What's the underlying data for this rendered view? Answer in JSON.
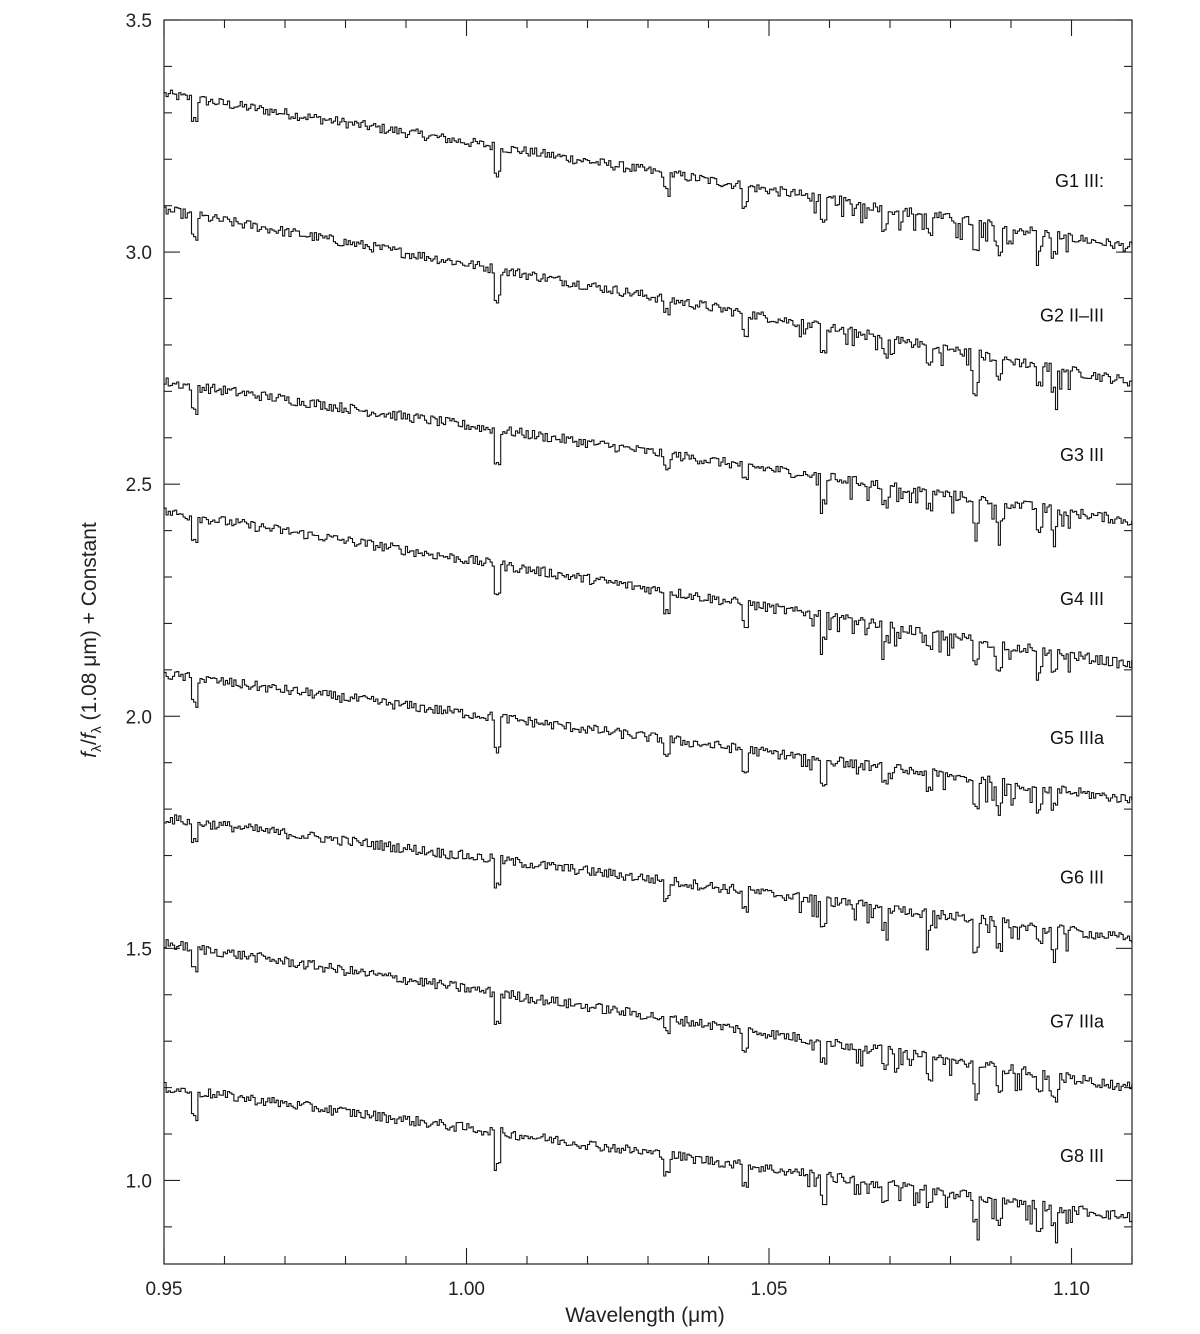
{
  "chart_data": {
    "type": "line",
    "title": "",
    "xlabel": "Wavelength (μm)",
    "ylabel_parts": {
      "f1": "f",
      "sub1": "λ",
      "slash": "/",
      "f2": "f",
      "sub2": "λ",
      "rest": " (1.08 μm) + Constant"
    },
    "xlim": [
      0.95,
      1.11
    ],
    "ylim": [
      0.82,
      3.5
    ],
    "x_ticks": [
      {
        "value": 0.95,
        "label": "0.95"
      },
      {
        "value": 1.0,
        "label": "1.00"
      },
      {
        "value": 1.05,
        "label": "1.05"
      },
      {
        "value": 1.1,
        "label": "1.10"
      }
    ],
    "x_minor_step": 0.01,
    "y_ticks": [
      {
        "value": 1.0,
        "label": "1.0"
      },
      {
        "value": 1.5,
        "label": "1.5"
      },
      {
        "value": 2.0,
        "label": "2.0"
      },
      {
        "value": 2.5,
        "label": "2.5"
      },
      {
        "value": 3.0,
        "label": "3.0"
      },
      {
        "value": 3.5,
        "label": "3.5"
      }
    ],
    "y_minor_step": 0.1,
    "grid": false,
    "lines": [
      {
        "name": "G1 III:",
        "start": 3.34,
        "end": 3.01,
        "label_y": 3.14
      },
      {
        "name": "G2 II–III",
        "start": 3.09,
        "end": 2.72,
        "label_y": 2.85
      },
      {
        "name": "G3 III",
        "start": 2.72,
        "end": 2.42,
        "label_y": 2.55
      },
      {
        "name": "G4 III",
        "start": 2.44,
        "end": 2.11,
        "label_y": 2.24
      },
      {
        "name": "G5 IIIa",
        "start": 2.09,
        "end": 1.82,
        "label_y": 1.94
      },
      {
        "name": "G6 III",
        "start": 1.78,
        "end": 1.52,
        "label_y": 1.64
      },
      {
        "name": "G7 IIIa",
        "start": 1.51,
        "end": 1.2,
        "label_y": 1.33
      },
      {
        "name": "G8 III",
        "start": 1.2,
        "end": 0.92,
        "label_y": 1.04
      }
    ],
    "absorption_features_um": [
      {
        "x": 0.955,
        "depth": 0.07
      },
      {
        "x": 1.005,
        "depth": 0.09
      },
      {
        "x": 1.033,
        "depth": 0.05
      },
      {
        "x": 1.046,
        "depth": 0.06
      },
      {
        "x": 1.059,
        "depth": 0.07
      },
      {
        "x": 1.069,
        "depth": 0.05
      },
      {
        "x": 1.0765,
        "depth": 0.05
      },
      {
        "x": 1.084,
        "depth": 0.08
      },
      {
        "x": 1.088,
        "depth": 0.07
      },
      {
        "x": 1.0945,
        "depth": 0.06
      },
      {
        "x": 1.097,
        "depth": 0.06
      }
    ]
  }
}
